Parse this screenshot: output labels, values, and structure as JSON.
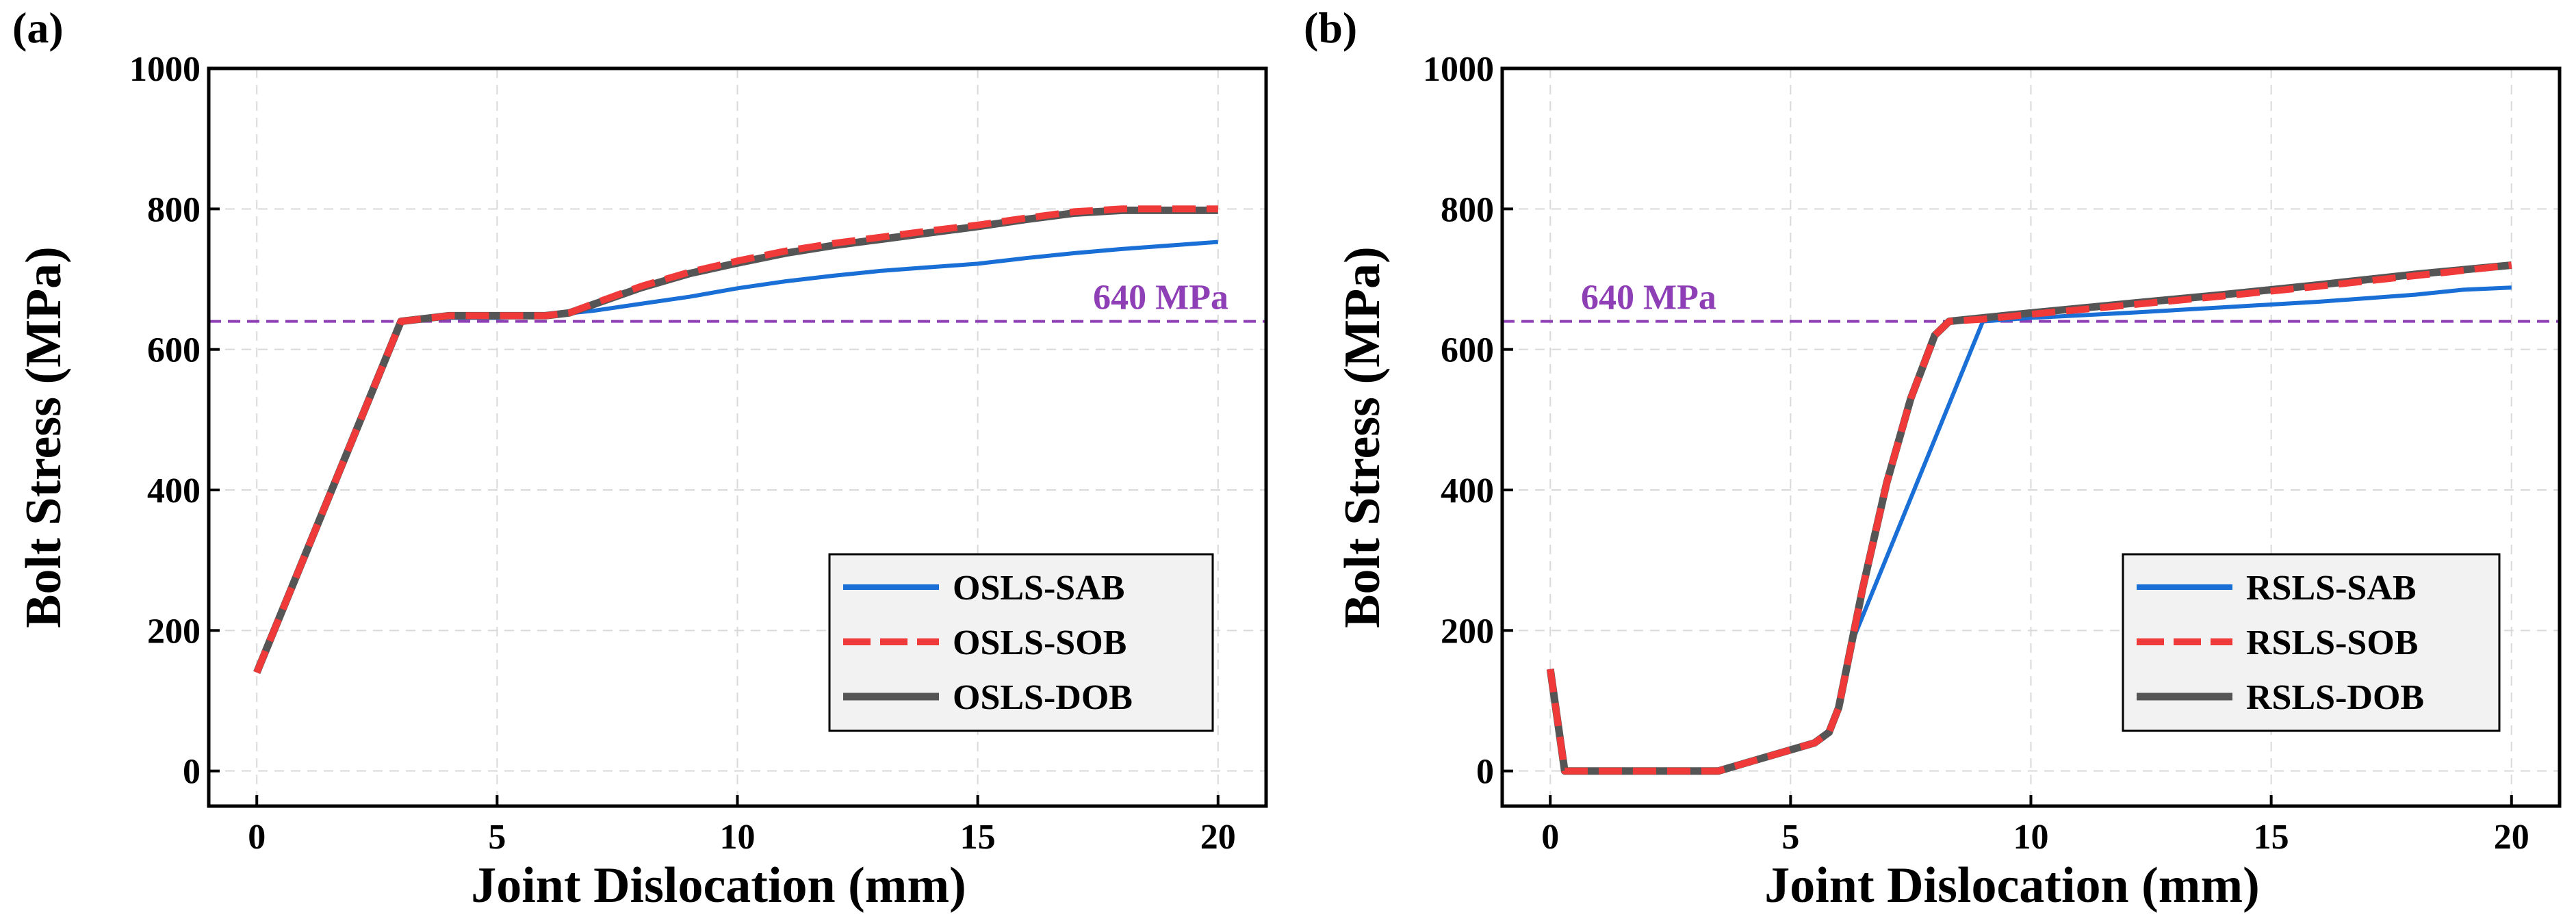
{
  "chart_data": [
    {
      "type": "line",
      "panel_label": "(a)",
      "xlabel": "Joint Dislocation (mm)",
      "ylabel": "Bolt Stress (MPa)",
      "xlim": [
        -1,
        21
      ],
      "ylim": [
        -50,
        1000
      ],
      "xticks": [
        0,
        5,
        10,
        15,
        20
      ],
      "yticks": [
        0,
        200,
        400,
        600,
        800,
        1000
      ],
      "grid": true,
      "legend_position": "bottom-right",
      "reference_line": {
        "y": 640,
        "label": "640 MPa",
        "color": "#8e3fb5",
        "label_position": "right"
      },
      "series": [
        {
          "name": "OSLS-SAB",
          "color": "#1a6fd6",
          "style": "solid",
          "x": [
            0,
            3,
            4,
            5,
            6,
            7,
            8,
            9,
            10,
            11,
            12,
            13,
            14,
            15,
            16,
            17,
            18,
            19,
            20
          ],
          "y": [
            140,
            640,
            645,
            645,
            648,
            655,
            665,
            675,
            687,
            697,
            705,
            712,
            717,
            722,
            730,
            737,
            743,
            748,
            753
          ]
        },
        {
          "name": "OSLS-SOB",
          "color": "#f03a3a",
          "style": "dashed",
          "x": [
            0,
            3,
            4,
            5,
            6,
            6.5,
            7,
            8,
            9,
            10,
            11,
            12,
            13,
            14,
            15,
            16,
            17,
            18,
            19,
            20
          ],
          "y": [
            140,
            640,
            648,
            648,
            648,
            652,
            665,
            690,
            710,
            726,
            740,
            751,
            760,
            769,
            777,
            787,
            796,
            800,
            800,
            800
          ]
        },
        {
          "name": "OSLS-DOB",
          "color": "#555555",
          "style": "solid",
          "x": [
            0,
            3,
            4,
            5,
            6,
            6.5,
            7,
            8,
            9,
            10,
            11,
            12,
            13,
            14,
            15,
            16,
            17,
            18,
            19,
            20
          ],
          "y": [
            140,
            640,
            648,
            648,
            648,
            652,
            664,
            688,
            708,
            723,
            737,
            748,
            757,
            766,
            775,
            785,
            794,
            798,
            798,
            798
          ]
        }
      ]
    },
    {
      "type": "line",
      "panel_label": "(b)",
      "xlabel": "Joint Dislocation (mm)",
      "ylabel": "Bolt Stress (MPa)",
      "xlim": [
        -1,
        21
      ],
      "ylim": [
        -50,
        1000
      ],
      "xticks": [
        0,
        5,
        10,
        15,
        20
      ],
      "yticks": [
        0,
        200,
        400,
        600,
        800,
        1000
      ],
      "grid": true,
      "legend_position": "bottom-right",
      "reference_line": {
        "y": 640,
        "label": "640 MPa",
        "color": "#8e3fb5",
        "label_position": "left"
      },
      "series": [
        {
          "name": "RSLS-SAB",
          "color": "#1a6fd6",
          "style": "solid",
          "x": [
            0,
            0.3,
            1,
            2,
            3,
            3.5,
            4,
            5,
            5.5,
            5.8,
            6,
            6.2,
            9,
            10,
            12,
            14,
            16,
            18,
            19,
            20
          ],
          "y": [
            145,
            0,
            0,
            0,
            0,
            0,
            10,
            30,
            40,
            55,
            90,
            170,
            640,
            645,
            652,
            660,
            668,
            678,
            685,
            688
          ]
        },
        {
          "name": "RSLS-SOB",
          "color": "#f03a3a",
          "style": "dashed",
          "x": [
            0,
            0.3,
            1,
            2,
            3,
            3.5,
            4,
            5,
            5.5,
            5.8,
            6,
            6.5,
            7,
            7.5,
            8,
            8.3,
            9,
            10,
            12,
            14,
            16,
            18,
            20
          ],
          "y": [
            145,
            0,
            0,
            0,
            0,
            0,
            10,
            30,
            40,
            55,
            90,
            260,
            410,
            530,
            620,
            640,
            643,
            650,
            663,
            676,
            690,
            705,
            720
          ]
        },
        {
          "name": "RSLS-DOB",
          "color": "#555555",
          "style": "solid",
          "x": [
            0,
            0.3,
            1,
            2,
            3,
            3.5,
            4,
            5,
            5.5,
            5.8,
            6,
            6.5,
            7,
            7.5,
            8,
            8.3,
            9,
            10,
            12,
            14,
            16,
            18,
            20
          ],
          "y": [
            145,
            0,
            0,
            0,
            0,
            0,
            10,
            30,
            40,
            55,
            90,
            260,
            410,
            530,
            620,
            640,
            645,
            652,
            665,
            678,
            692,
            707,
            720
          ]
        }
      ]
    }
  ]
}
